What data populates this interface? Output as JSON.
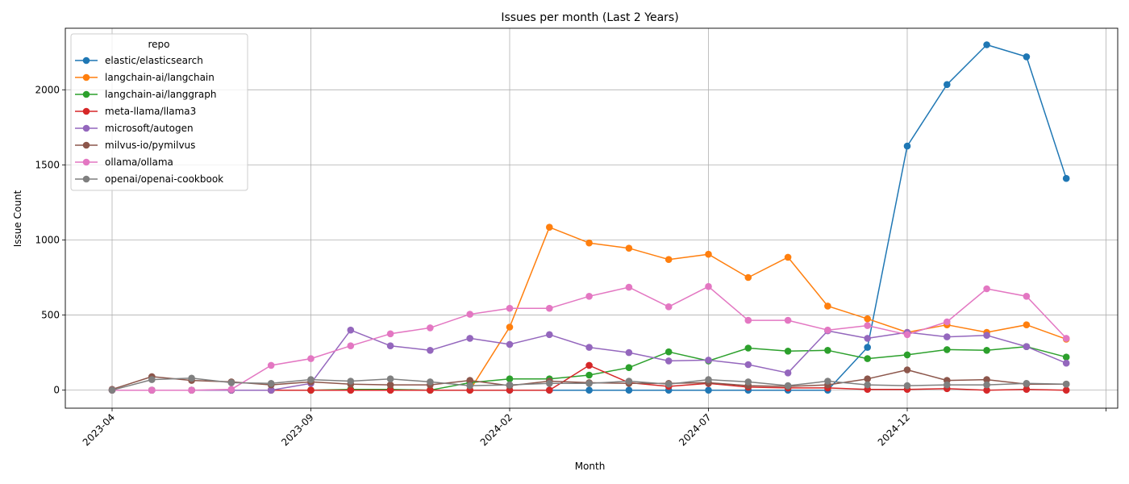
{
  "chart_data": {
    "type": "line",
    "title": "Issues per month (Last 2 Years)",
    "xlabel": "Month",
    "ylabel": "Issue Count",
    "x": [
      "2023-04",
      "2023-05",
      "2023-06",
      "2023-07",
      "2023-08",
      "2023-09",
      "2023-10",
      "2023-11",
      "2023-12",
      "2024-01",
      "2024-02",
      "2024-03",
      "2024-04",
      "2024-05",
      "2024-06",
      "2024-07",
      "2024-08",
      "2024-09",
      "2024-10",
      "2024-11",
      "2024-12",
      "2025-01",
      "2025-02",
      "2025-03",
      "2025-04"
    ],
    "xticks": [
      "2023-04",
      "2023-09",
      "2024-02",
      "2024-07",
      "2024-12",
      ""
    ],
    "yticks": [
      0,
      500,
      1000,
      1500,
      2000
    ],
    "ylim": [
      -120,
      2410
    ],
    "grid": true,
    "legend": {
      "title": "repo",
      "placement": "upper-left"
    },
    "series": [
      {
        "name": "elastic/elasticsearch",
        "color": "#1f77b4",
        "values": [
          0,
          0,
          0,
          0,
          0,
          0,
          0,
          0,
          0,
          0,
          0,
          0,
          0,
          0,
          0,
          0,
          0,
          0,
          0,
          285,
          1625,
          2035,
          2300,
          2220,
          1410
        ]
      },
      {
        "name": "langchain-ai/langchain",
        "color": "#ff7f0e",
        "values": [
          0,
          0,
          0,
          0,
          0,
          0,
          0,
          0,
          0,
          0,
          420,
          1085,
          980,
          945,
          870,
          905,
          750,
          885,
          560,
          475,
          385,
          435,
          385,
          435,
          340
        ]
      },
      {
        "name": "langchain-ai/langgraph",
        "color": "#2ca02c",
        "values": [
          0,
          0,
          0,
          0,
          0,
          0,
          5,
          5,
          0,
          50,
          75,
          75,
          100,
          150,
          255,
          195,
          280,
          260,
          265,
          210,
          235,
          270,
          265,
          290,
          220
        ]
      },
      {
        "name": "meta-llama/llama3",
        "color": "#d62728",
        "values": [
          0,
          0,
          0,
          0,
          0,
          0,
          0,
          0,
          0,
          0,
          0,
          0,
          165,
          50,
          25,
          45,
          20,
          15,
          15,
          5,
          5,
          10,
          0,
          5,
          0
        ]
      },
      {
        "name": "microsoft/autogen",
        "color": "#9467bd",
        "values": [
          0,
          0,
          0,
          0,
          0,
          45,
          400,
          295,
          265,
          345,
          305,
          370,
          285,
          250,
          195,
          200,
          170,
          115,
          395,
          345,
          385,
          355,
          365,
          290,
          180
        ]
      },
      {
        "name": "milvus-io/pymilvus",
        "color": "#8c564b",
        "values": [
          5,
          90,
          65,
          55,
          35,
          55,
          40,
          35,
          35,
          65,
          30,
          60,
          50,
          45,
          45,
          50,
          30,
          25,
          35,
          75,
          135,
          65,
          70,
          40,
          40
        ]
      },
      {
        "name": "ollama/ollama",
        "color": "#e377c2",
        "values": [
          0,
          0,
          0,
          5,
          165,
          210,
          295,
          375,
          415,
          505,
          545,
          545,
          625,
          685,
          555,
          690,
          465,
          465,
          400,
          430,
          370,
          455,
          675,
          625,
          345
        ]
      },
      {
        "name": "openai/openai-cookbook",
        "color": "#7f7f7f",
        "values": [
          0,
          70,
          80,
          50,
          45,
          70,
          60,
          75,
          55,
          30,
          35,
          45,
          45,
          60,
          40,
          70,
          55,
          30,
          60,
          35,
          30,
          35,
          35,
          45,
          40
        ]
      }
    ]
  }
}
